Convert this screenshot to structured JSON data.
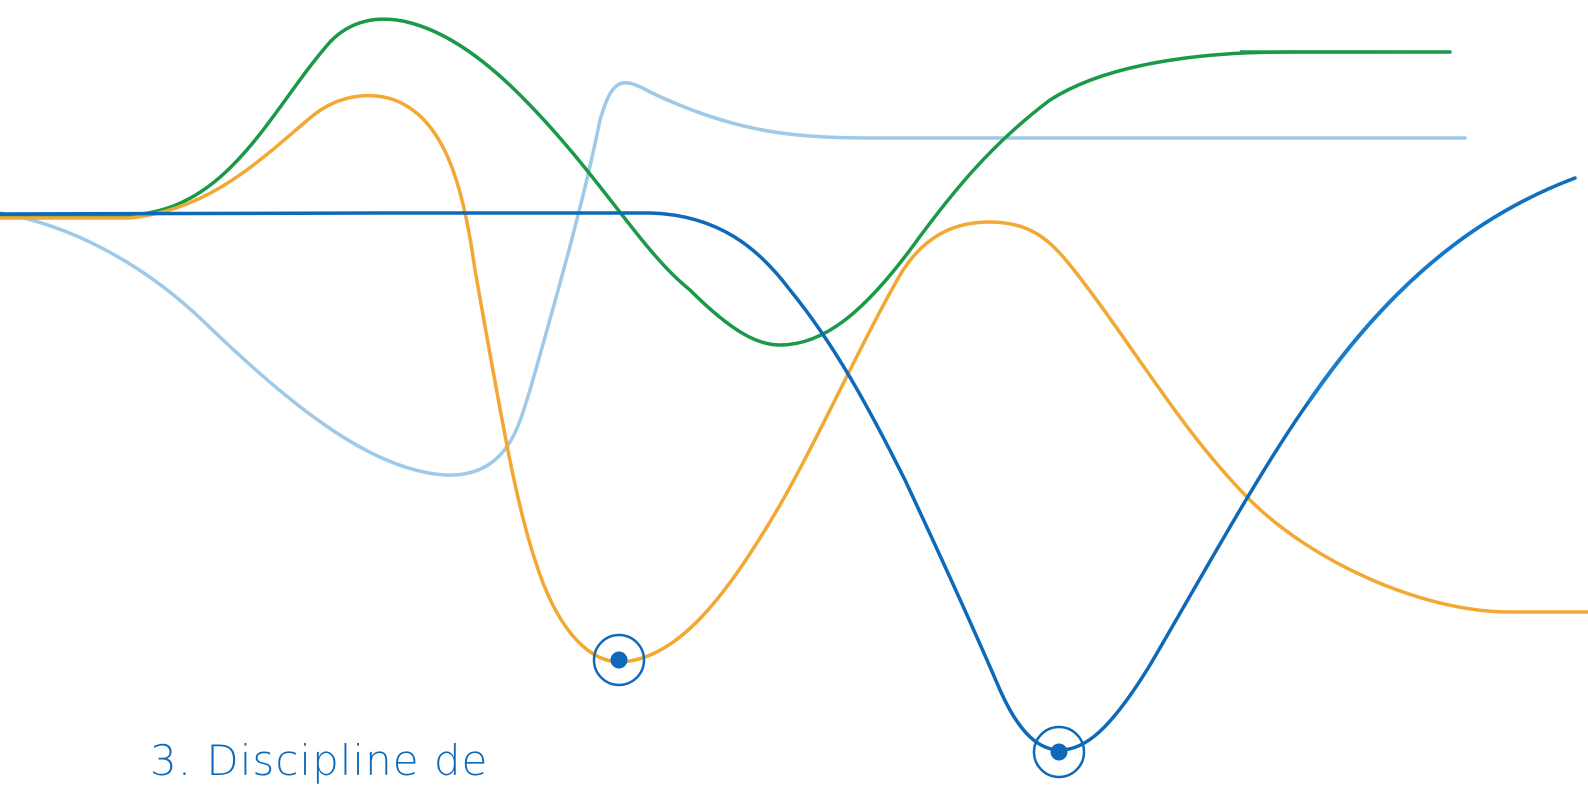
{
  "heading": {
    "text": "3. Discipline de"
  },
  "colors": {
    "green": "#1a9a48",
    "orange": "#f2a833",
    "light_blue": "#9ec9e8",
    "dark_blue": "#0e6ab8",
    "heading": "#0e6ab8",
    "marker": "#0e6ab8"
  },
  "decoration": {
    "curves": [
      {
        "name": "green-curve",
        "color_key": "green"
      },
      {
        "name": "light-blue-curve",
        "color_key": "light_blue"
      },
      {
        "name": "orange-curve",
        "color_key": "orange"
      },
      {
        "name": "dark-blue-curve",
        "color_key": "dark_blue"
      }
    ],
    "markers": [
      {
        "name": "marker-orange-minimum"
      },
      {
        "name": "marker-blue-minimum"
      }
    ]
  }
}
